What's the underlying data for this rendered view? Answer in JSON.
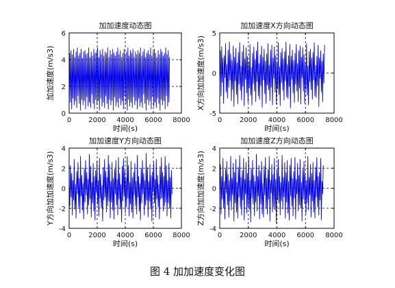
{
  "figure_caption": "图 4  加加速度变化图",
  "colors": {
    "series": "#0000e6",
    "axes": "#000000",
    "grid": "#000000",
    "background": "#ffffff"
  },
  "chart_data": [
    {
      "type": "line",
      "title": "加加速度动态图",
      "xlabel": "时间(s)",
      "ylabel": "加加速度(m/s3)",
      "xlim": [
        0,
        8000
      ],
      "ylim": [
        0,
        6
      ],
      "xticks": [
        0,
        2000,
        4000,
        6000,
        8000
      ],
      "yticks": [
        0,
        2,
        4,
        6
      ],
      "grid": "dashed at interior ticks",
      "series": [
        {
          "values_sampled_every_s": 45,
          "x_range": [
            0,
            7200
          ],
          "y": [
            0.5,
            4.5,
            0.8,
            4.7,
            0.3,
            4.4,
            1.1,
            4.8,
            0.6,
            4.2,
            0.9,
            4.6,
            0.4,
            4.9,
            1.3,
            4.3,
            0.7,
            4.5,
            0.2,
            4.8,
            1.0,
            4.1,
            0.6,
            4.6,
            0.9,
            4.7,
            0.3,
            4.4,
            1.2,
            4.5,
            0.5,
            4.9,
            0.8,
            4.2,
            0.4,
            4.6,
            1.4,
            4.3,
            0.7,
            4.8,
            0.3,
            4.5,
            1.0,
            4.6,
            0.6,
            4.9,
            0.9,
            4.2,
            0.2,
            4.7,
            1.1,
            4.4,
            0.5,
            4.8,
            0.8,
            4.3,
            0.4,
            4.6,
            1.3,
            4.5,
            0.7,
            4.9,
            0.3,
            4.2,
            1.0,
            4.7,
            0.6,
            4.4,
            0.9,
            4.8,
            0.2,
            4.5,
            1.2,
            4.3,
            0.5,
            4.6,
            0.8,
            4.9,
            0.4,
            4.4,
            1.1,
            4.7,
            0.6,
            4.2,
            0.9,
            4.5,
            0.3,
            4.8,
            1.3,
            4.4,
            0.7,
            4.6,
            0.2,
            4.9,
            1.0,
            4.3,
            0.5,
            4.7,
            0.8,
            4.5,
            0.4,
            4.8,
            1.2,
            4.2,
            0.6,
            4.6,
            0.9,
            4.4,
            0.3,
            4.7,
            1.1,
            4.5,
            0.5,
            4.9,
            0.8,
            4.3,
            0.4,
            4.6,
            1.4,
            4.8,
            0.7,
            4.2,
            0.2,
            4.5,
            1.0,
            4.7,
            0.6,
            4.4,
            0.9,
            4.9,
            0.3,
            4.3,
            1.2,
            4.6,
            0.5,
            4.8,
            0.8,
            4.5,
            0.4,
            4.2,
            1.1,
            4.7,
            0.7,
            4.4,
            0.2,
            4.8,
            1.0,
            4.6,
            0.6,
            4.3,
            0.9,
            4.5,
            0.3,
            4.9,
            1.3,
            4.4,
            0.5,
            4.7,
            0.8,
            4.2
          ]
        }
      ]
    },
    {
      "type": "line",
      "title": "加加速度X方向动态图",
      "xlabel": "时间(s)",
      "ylabel": "X方向加加速度(m/s3)",
      "xlim": [
        0,
        8000
      ],
      "ylim": [
        -5,
        5
      ],
      "xticks": [
        0,
        2000,
        4000,
        6000,
        8000
      ],
      "yticks": [
        -5,
        0,
        5
      ],
      "grid": "dashed at interior ticks",
      "series": [
        {
          "values_sampled_every_s": 45,
          "x_range": [
            0,
            7200
          ],
          "y": [
            -1.5,
            2.8,
            -2.9,
            3.3,
            -1.2,
            1.9,
            -3.8,
            2.2,
            -0.6,
            3.7,
            -2.4,
            1.1,
            -3.2,
            2.9,
            -1.8,
            3.9,
            -0.9,
            2.4,
            -3.5,
            1.6,
            -2.1,
            3.4,
            -4.2,
            2.0,
            -1.0,
            3.1,
            -2.7,
            1.3,
            -3.9,
            2.6,
            -1.4,
            3.8,
            -2.2,
            0.9,
            -3.4,
            2.7,
            -1.7,
            3.5,
            -4.1,
            1.8,
            -0.8,
            3.2,
            -2.5,
            2.1,
            -3.7,
            1.4,
            -1.9,
            3.6,
            -2.8,
            0.7,
            -4.0,
            2.5,
            -1.3,
            3.3,
            -2.3,
            1.7,
            -3.6,
            2.8,
            -1.1,
            3.9,
            -2.9,
            1.2,
            -3.3,
            2.3,
            -1.6,
            3.4,
            -4.3,
            2.0,
            -0.9,
            3.0,
            -2.6,
            1.5,
            -3.8,
            2.4,
            -1.5,
            3.7,
            -2.1,
            1.0,
            -3.5,
            2.9,
            -1.8,
            3.5,
            -4.0,
            1.9,
            -0.7,
            3.3,
            -2.4,
            2.2,
            -3.9,
            1.3,
            -2.0,
            3.8,
            -2.7,
            0.8,
            -4.1,
            2.6,
            -1.2,
            3.1,
            -2.2,
            1.8,
            -3.4,
            2.7,
            -1.0,
            3.9,
            -3.0,
            1.1,
            -3.2,
            2.2,
            -1.7,
            3.6,
            -4.4,
            2.1,
            -0.8,
            2.9,
            -2.5,
            1.6,
            -3.7,
            2.5,
            -1.4,
            3.6,
            -2.3,
            1.2,
            -3.6,
            2.8,
            -1.9,
            3.4,
            -3.9,
            2.0,
            -0.6,
            3.2,
            -2.3,
            2.3,
            -3.8,
            1.4,
            -2.1,
            3.7,
            -2.8,
            0.9,
            -4.0,
            2.7,
            -1.1,
            3.0,
            -2.1,
            1.9,
            -3.3,
            2.6,
            -0.9,
            3.8,
            -2.9,
            1.0,
            -3.1,
            2.1,
            -1.6,
            3.5,
            -4.2,
            1.9,
            -0.7,
            2.8,
            -2.4,
            1.5,
            -3.6,
            2.4,
            -1.3,
            3.5
          ]
        }
      ]
    },
    {
      "type": "line",
      "title": "加加速度Y方向动态图",
      "xlabel": "时间(s)",
      "ylabel": "Y方向加加速度(m/s3)",
      "xlim": [
        0,
        8000
      ],
      "ylim": [
        -4,
        4
      ],
      "xticks": [
        0,
        2000,
        4000,
        6000,
        8000
      ],
      "yticks": [
        -4,
        -2,
        0,
        2,
        4
      ],
      "grid": "dashed at interior ticks",
      "series": [
        {
          "values_sampled_every_s": 45,
          "x_range": [
            0,
            7200
          ],
          "y": [
            0.6,
            -1.8,
            2.3,
            -0.9,
            1.5,
            -2.7,
            0.8,
            -1.2,
            2.9,
            -2.1,
            0.4,
            -3.0,
            1.7,
            -0.6,
            2.6,
            -1.9,
            1.0,
            -2.5,
            3.2,
            -0.8,
            1.3,
            -2.2,
            0.5,
            -3.1,
            2.0,
            -1.4,
            2.8,
            -0.7,
            1.6,
            -2.6,
            0.9,
            -1.7,
            3.4,
            -1.1,
            2.2,
            -2.9,
            0.6,
            -1.5,
            2.5,
            -2.3,
            1.2,
            -3.2,
            1.8,
            -0.5,
            2.7,
            -1.6,
            0.8,
            -2.8,
            3.0,
            -1.0,
            1.4,
            -2.0,
            0.3,
            -3.3,
            2.1,
            -1.2,
            2.9,
            -0.9,
            1.7,
            -2.4,
            1.1,
            -1.8,
            3.3,
            -1.3,
            2.4,
            -3.0,
            0.7,
            -1.4,
            2.6,
            -2.2,
            1.0,
            -3.1,
            1.9,
            -0.6,
            2.8,
            -1.7,
            0.9,
            -2.7,
            3.1,
            -1.1,
            1.5,
            -2.1,
            0.4,
            -3.4,
            2.2,
            -1.3,
            3.0,
            -0.8,
            1.8,
            -2.5,
            1.0,
            -1.9,
            3.2,
            -1.0,
            2.3,
            -2.8,
            0.6,
            -1.6,
            2.7,
            -2.4,
            1.1,
            -3.0,
            1.6,
            -0.7,
            2.5,
            -1.8,
            0.7,
            -2.6,
            3.3,
            -0.9,
            1.2,
            -2.3,
            0.5,
            -3.2,
            2.0,
            -1.5,
            2.8,
            -0.6,
            1.5,
            -2.7,
            0.8,
            -1.7,
            3.5,
            -1.2,
            2.1,
            -2.9,
            0.7,
            -1.3,
            2.4,
            -2.1,
            1.3,
            -3.3,
            1.7,
            -0.4,
            2.6,
            -1.5,
            0.9,
            -2.9,
            2.9,
            -1.1,
            1.3,
            -1.9,
            0.4,
            -3.1,
            2.2,
            -1.1,
            3.1,
            -1.0,
            1.6,
            -2.3,
            1.2,
            -1.8,
            3.2,
            -1.4,
            2.3,
            -2.8,
            0.8,
            -1.5,
            2.5,
            -2.0,
            1.1,
            -3.0,
            1.8,
            -0.6
          ]
        }
      ]
    },
    {
      "type": "line",
      "title": "加加速度Z方向动态图",
      "xlabel": "时间(s)",
      "ylabel": "Z方向加加速度(m/s3)",
      "xlim": [
        0,
        8000
      ],
      "ylim": [
        -4,
        4
      ],
      "xticks": [
        0,
        2000,
        4000,
        6000,
        8000
      ],
      "yticks": [
        -4,
        -2,
        0,
        2,
        4
      ],
      "grid": "dashed at interior ticks",
      "series": [
        {
          "values_sampled_every_s": 45,
          "x_range": [
            0,
            7200
          ],
          "y": [
            -0.8,
            2.4,
            -2.6,
            1.2,
            -1.1,
            3.0,
            -2.0,
            0.7,
            -3.1,
            1.9,
            -0.5,
            2.7,
            -1.7,
            1.4,
            -2.9,
            0.8,
            -1.3,
            3.2,
            -2.2,
            1.0,
            -0.7,
            2.5,
            -3.3,
            1.6,
            -1.5,
            2.9,
            -2.4,
            0.6,
            -3.0,
            2.1,
            -0.9,
            3.3,
            -1.9,
            1.1,
            -2.7,
            1.8,
            -1.2,
            3.0,
            -3.2,
            0.9,
            -0.6,
            2.6,
            -2.5,
            1.5,
            -1.8,
            3.1,
            -2.1,
            0.8,
            -3.4,
            2.0,
            -1.0,
            2.8,
            -1.6,
            1.3,
            -2.8,
            0.7,
            -1.4,
            3.4,
            -2.3,
            1.2,
            -0.8,
            2.3,
            -3.1,
            1.7,
            -1.6,
            2.7,
            -2.6,
            0.5,
            -2.9,
            2.2,
            -0.7,
            3.1,
            -2.0,
            1.0,
            -2.6,
            1.9,
            -1.1,
            3.2,
            -3.3,
            0.8,
            -0.5,
            2.4,
            -2.4,
            1.4,
            -1.9,
            3.0,
            -2.2,
            0.9,
            -3.5,
            1.8,
            -1.2,
            2.9,
            -1.5,
            1.2,
            -2.7,
            0.6,
            -1.3,
            3.3,
            -2.1,
            1.1,
            -0.9,
            2.6,
            -3.0,
            1.6,
            -1.4,
            2.8,
            -2.5,
            0.7,
            -3.2,
            2.3,
            -0.8,
            3.0,
            -1.8,
            1.0,
            -2.8,
            1.7,
            -1.0,
            3.1,
            -3.1,
            0.9,
            -0.6,
            2.5,
            -2.3,
            1.3,
            -1.7,
            2.9,
            -2.0,
            0.6,
            -3.3,
            1.9,
            -1.1,
            2.7,
            -1.6,
            1.4,
            -2.6,
            0.8,
            -1.5,
            3.2,
            -2.2,
            1.1,
            -0.7,
            2.4,
            -2.9,
            1.5,
            -1.3,
            2.6,
            -2.4,
            0.8,
            -3.0,
            2.1,
            -0.9,
            3.1,
            -1.9,
            1.2,
            -2.7,
            1.6,
            -1.2,
            3.0,
            -3.2,
            0.7,
            -0.6,
            2.3
          ]
        }
      ]
    }
  ]
}
